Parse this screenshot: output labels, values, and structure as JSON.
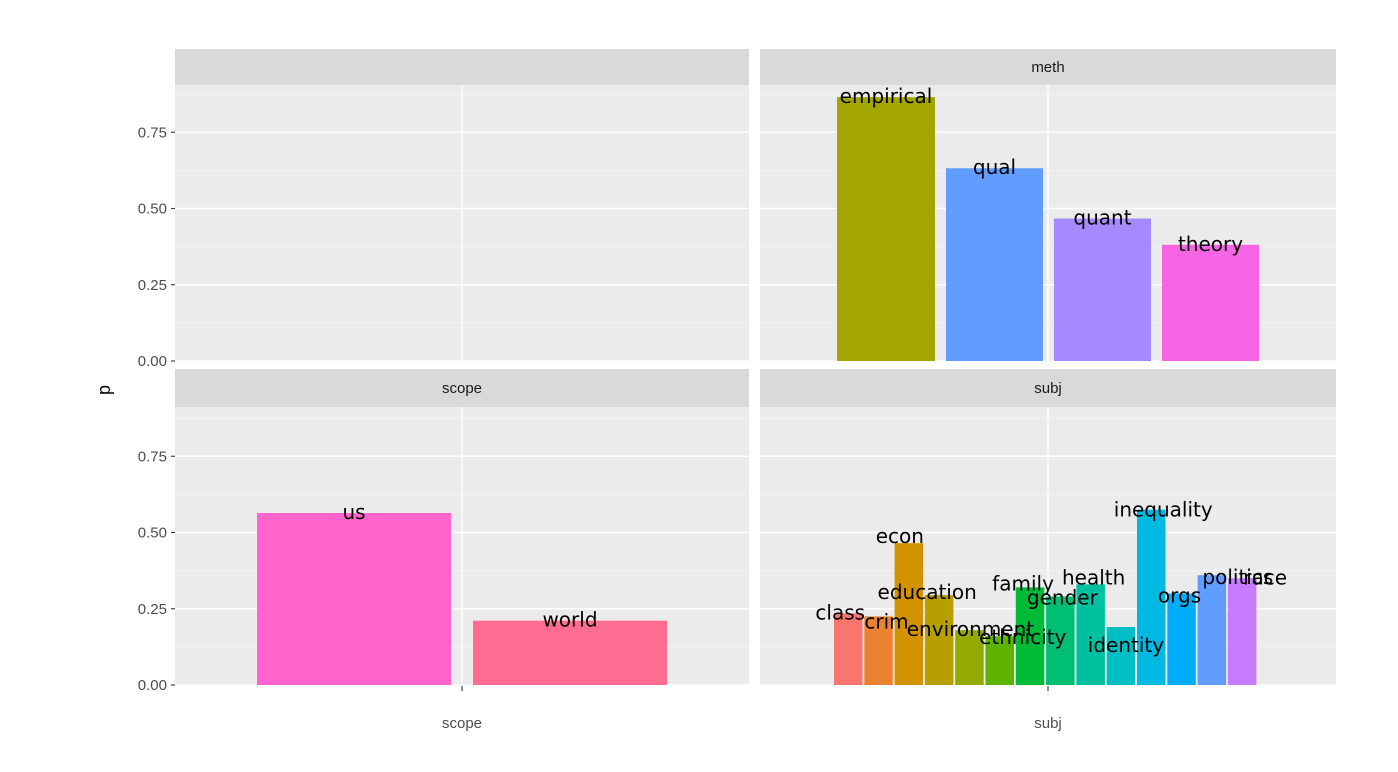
{
  "chart_data": {
    "type": "bar",
    "ylabel": "p",
    "ylim": [
      0,
      0.93
    ],
    "y_ticks": [
      "0.00",
      "0.25",
      "0.50",
      "0.75"
    ],
    "grid": true,
    "legend": "none",
    "panels": [
      {
        "id": "p1",
        "strip": "",
        "x_tick_label": "",
        "bars": []
      },
      {
        "id": "meth",
        "strip": "meth",
        "x_tick_label": "",
        "bars": [
          {
            "label": "empirical",
            "value": 0.865,
            "color": "#A3A500"
          },
          {
            "label": "qual",
            "value": 0.632,
            "color": "#619CFF"
          },
          {
            "label": "quant",
            "value": 0.467,
            "color": "#A58AFF"
          },
          {
            "label": "theory",
            "value": 0.381,
            "color": "#F564E3"
          }
        ]
      },
      {
        "id": "scope",
        "strip": "scope",
        "x_tick_label": "scope",
        "bars": [
          {
            "label": "us",
            "value": 0.564,
            "color": "#FF64CC"
          },
          {
            "label": "world",
            "value": 0.211,
            "color": "#FF6C91"
          }
        ]
      },
      {
        "id": "subj",
        "strip": "subj",
        "x_tick_label": "subj",
        "bars": [
          {
            "label": "class",
            "value": 0.235,
            "color": "#F8766D"
          },
          {
            "label": "crim",
            "value": 0.225,
            "color": "#EA8331"
          },
          {
            "label": "econ",
            "value": 0.465,
            "color": "#D39200"
          },
          {
            "label": "education",
            "value": 0.295,
            "color": "#B79F00"
          },
          {
            "label": "environment",
            "value": 0.18,
            "color": "#93AA00"
          },
          {
            "label": "ethnicity",
            "value": 0.16,
            "color": "#5EB300"
          },
          {
            "label": "family",
            "value": 0.32,
            "color": "#00BA38"
          },
          {
            "label": "gender",
            "value": 0.29,
            "color": "#00BF74"
          },
          {
            "label": "health",
            "value": 0.33,
            "color": "#00C19F"
          },
          {
            "label": "identity",
            "value": 0.19,
            "color": "#00BFC4"
          },
          {
            "label": "inequality",
            "value": 0.575,
            "color": "#00B9E3"
          },
          {
            "label": "orgs",
            "value": 0.3,
            "color": "#00ADFA"
          },
          {
            "label": "politics",
            "value": 0.36,
            "color": "#619CFF"
          },
          {
            "label": "race",
            "value": 0.35,
            "color": "#C77CFF"
          }
        ]
      }
    ]
  }
}
